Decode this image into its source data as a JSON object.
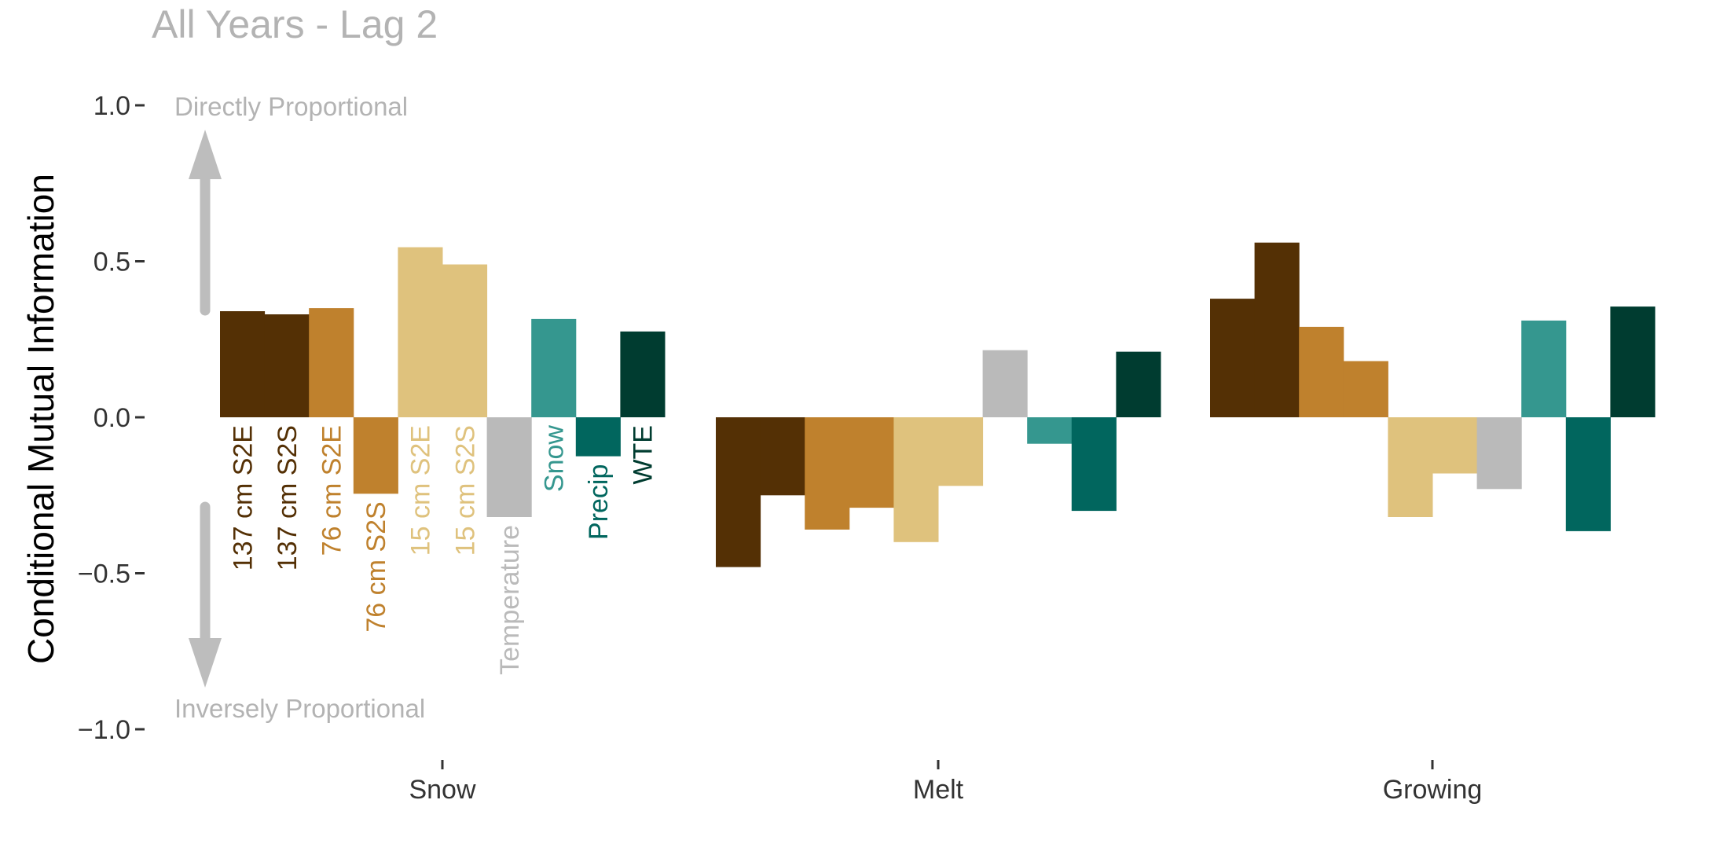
{
  "chart_data": {
    "type": "bar",
    "title": "All Years - Lag 2",
    "ylabel": "Conditional Mutual Information",
    "ylim": [
      -1.0,
      1.0
    ],
    "yticks": [
      {
        "value": 1.0,
        "label": "1.0"
      },
      {
        "value": 0.5,
        "label": "0.5"
      },
      {
        "value": 0.0,
        "label": "0.0"
      },
      {
        "value": -0.5,
        "label": "−0.5"
      },
      {
        "value": -1.0,
        "label": "−1.0"
      }
    ],
    "categories": [
      "Snow",
      "Melt",
      "Growing"
    ],
    "annotations": {
      "top": "Directly Proportional",
      "bottom": "Inversely Proportional",
      "arrow_color": "#bdbdbd"
    },
    "series": [
      {
        "name": "137 cm S2E",
        "color": "#543005",
        "values": [
          0.34,
          -0.48,
          0.38
        ]
      },
      {
        "name": "137 cm S2S",
        "color": "#543005",
        "values": [
          0.33,
          -0.25,
          0.56
        ]
      },
      {
        "name": "76 cm S2E",
        "color": "#bf812d",
        "values": [
          0.35,
          -0.36,
          0.29
        ]
      },
      {
        "name": "76 cm S2S",
        "color": "#bf812d",
        "values": [
          -0.245,
          -0.29,
          0.18
        ]
      },
      {
        "name": "15 cm S2E",
        "color": "#dfc27d",
        "values": [
          0.545,
          -0.4,
          -0.32
        ]
      },
      {
        "name": "15 cm S2S",
        "color": "#dfc27d",
        "values": [
          0.49,
          -0.22,
          -0.18
        ]
      },
      {
        "name": "Temperature",
        "color": "#bababa",
        "values": [
          -0.32,
          0.215,
          -0.23
        ]
      },
      {
        "name": "Snow",
        "color": "#35978f",
        "values": [
          0.315,
          -0.085,
          0.31
        ]
      },
      {
        "name": "Precip",
        "color": "#01665e",
        "values": [
          -0.125,
          -0.3,
          -0.365
        ]
      },
      {
        "name": "WTE",
        "color": "#003c30",
        "values": [
          0.275,
          0.21,
          0.355
        ]
      }
    ]
  }
}
